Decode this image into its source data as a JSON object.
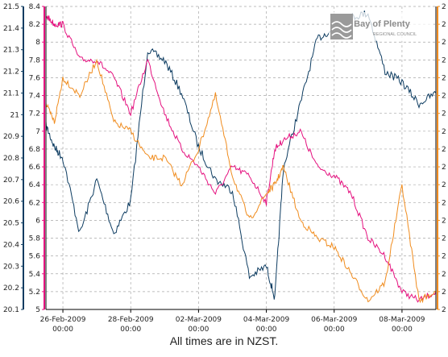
{
  "caption": "All times are in NZST.",
  "logo": {
    "line1": "Bay of Plenty",
    "line2": "REGIONAL COUNCIL"
  },
  "colors": {
    "navy": "#0d3c61",
    "magenta": "#e5117f",
    "orange": "#f08c1e",
    "grid": "#a8a8a8"
  },
  "chart_data": {
    "type": "line",
    "x_ticks": [
      {
        "date": "26-Feb-2009",
        "time": "00:00"
      },
      {
        "date": "28-Feb-2009",
        "time": "00:00"
      },
      {
        "date": "02-Mar-2009",
        "time": "00:00"
      },
      {
        "date": "04-Mar-2009",
        "time": "00:00"
      },
      {
        "date": "06-Mar-2009",
        "time": "00:00"
      },
      {
        "date": "08-Mar-2009",
        "time": "00:00"
      }
    ],
    "x_range": [
      "25-Feb-2009 12:00",
      "09-Mar-2009 00:00"
    ],
    "axes": {
      "outer_left": {
        "color": "#0d3c61",
        "ylim": [
          20.1,
          21.5
        ],
        "ticks": [
          "21.5",
          "21.4",
          "21.3",
          "21.2",
          "21.1",
          "21",
          "20.9",
          "20.8",
          "20.7",
          "20.6",
          "20.5",
          "20.4",
          "20.3",
          "20.2",
          "20.1"
        ]
      },
      "inner_left": {
        "color": "#e5117f",
        "ylim": [
          5,
          8.4
        ],
        "ticks": [
          "8.4",
          "8.2",
          "8",
          "7.8",
          "7.6",
          "7.4",
          "7.2",
          "7",
          "6.8",
          "6.6",
          "6.4",
          "6.2",
          "6",
          "5.8",
          "5.6",
          "5.4",
          "5.2",
          "5"
        ]
      },
      "right": {
        "color": "#f08c1e",
        "tick_label": "2"
      }
    },
    "grid": true,
    "series": [
      {
        "axis": "outer_left",
        "color": "#0d3c61",
        "x": [
          "25-Feb 12:00",
          "25-Feb 18:00",
          "26-Feb 00:00",
          "26-Feb 12:00",
          "27-Feb 00:00",
          "27-Feb 12:00",
          "28-Feb 00:00",
          "28-Feb 12:00",
          "01-Mar 00:00",
          "01-Mar 12:00",
          "02-Mar 00:00",
          "02-Mar 12:00",
          "03-Mar 00:00",
          "03-Mar 12:00",
          "04-Mar 00:00",
          "04-Mar 06:00",
          "04-Mar 12:00",
          "05-Mar 00:00",
          "05-Mar 12:00",
          "06-Mar 00:00",
          "06-Mar 12:00",
          "07-Mar 00:00",
          "07-Mar 12:00",
          "08-Mar 00:00",
          "08-Mar 12:00",
          "09-Mar 00:00"
        ],
        "y": [
          20.95,
          20.85,
          20.8,
          20.45,
          20.7,
          20.45,
          20.6,
          21.3,
          21.25,
          21.1,
          20.85,
          20.7,
          20.65,
          20.25,
          20.3,
          20.15,
          20.75,
          21.05,
          21.35,
          21.4,
          21.45,
          21.47,
          21.2,
          21.15,
          21.05,
          21.1
        ]
      },
      {
        "axis": "inner_left",
        "color": "#e5117f",
        "x": [
          "25-Feb 12:00",
          "25-Feb 18:00",
          "26-Feb 00:00",
          "26-Feb 12:00",
          "27-Feb 00:00",
          "27-Feb 12:00",
          "28-Feb 00:00",
          "28-Feb 12:00",
          "01-Mar 00:00",
          "01-Mar 12:00",
          "02-Mar 00:00",
          "02-Mar 12:00",
          "03-Mar 00:00",
          "03-Mar 12:00",
          "04-Mar 00:00",
          "04-Mar 06:00",
          "04-Mar 12:00",
          "05-Mar 00:00",
          "05-Mar 12:00",
          "06-Mar 00:00",
          "06-Mar 12:00",
          "07-Mar 00:00",
          "07-Mar 12:00",
          "08-Mar 00:00",
          "08-Mar 12:00",
          "09-Mar 00:00"
        ],
        "y": [
          8.3,
          8.2,
          8.2,
          7.8,
          7.8,
          7.6,
          7.2,
          7.8,
          7.2,
          6.8,
          6.6,
          6.3,
          6.6,
          6.5,
          6.2,
          6.8,
          6.9,
          7.0,
          6.6,
          6.5,
          6.3,
          5.8,
          5.6,
          5.2,
          5.1,
          5.2
        ]
      },
      {
        "axis": "inner_left",
        "color": "#f08c1e",
        "x": [
          "25-Feb 12:00",
          "25-Feb 18:00",
          "26-Feb 00:00",
          "26-Feb 12:00",
          "27-Feb 00:00",
          "27-Feb 12:00",
          "28-Feb 00:00",
          "28-Feb 12:00",
          "01-Mar 00:00",
          "01-Mar 12:00",
          "02-Mar 00:00",
          "02-Mar 12:00",
          "03-Mar 00:00",
          "03-Mar 12:00",
          "04-Mar 00:00",
          "04-Mar 06:00",
          "04-Mar 12:00",
          "05-Mar 00:00",
          "05-Mar 12:00",
          "06-Mar 00:00",
          "06-Mar 12:00",
          "07-Mar 00:00",
          "07-Mar 12:00",
          "08-Mar 00:00",
          "08-Mar 12:00",
          "09-Mar 00:00"
        ],
        "y": [
          7.3,
          7.1,
          7.6,
          7.4,
          7.8,
          7.1,
          7.0,
          6.7,
          6.7,
          6.4,
          6.8,
          7.4,
          6.5,
          6.0,
          6.3,
          6.4,
          6.6,
          6.0,
          5.8,
          5.7,
          5.4,
          5.1,
          5.3,
          6.4,
          5.1,
          5.2
        ]
      }
    ]
  }
}
